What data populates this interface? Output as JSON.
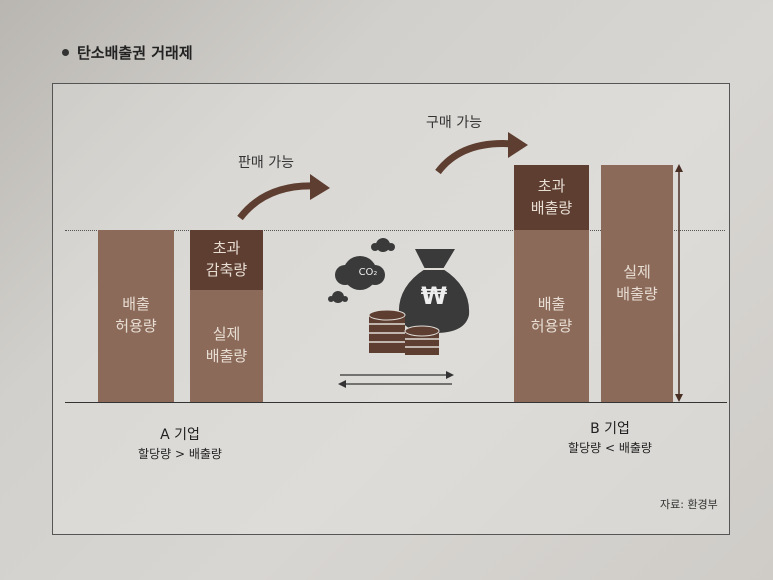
{
  "heading": "탄소배출권 거래제",
  "company_a": {
    "name": "A 기업",
    "condition": "할당량 > 배출량",
    "allowance_label": "배출\n허용량",
    "excess_reduction_label": "초과\n감축량",
    "actual_emission_label": "실제\n배출량"
  },
  "company_b": {
    "name": "B 기업",
    "condition": "할당량 < 배출량",
    "excess_emission_label": "초과\n배출량",
    "allowance_label": "배출\n허용량",
    "actual_emission_label": "실제\n배출량"
  },
  "sell_label": "판매 가능",
  "buy_label": "구매 가능",
  "co2_label": "CO₂",
  "won_symbol": "₩",
  "source": "자료: 환경부",
  "colors": {
    "dark_brown": "#5e3e31",
    "medium_brown": "#8c6a5a",
    "icon_gray": "#3a3a3a"
  }
}
